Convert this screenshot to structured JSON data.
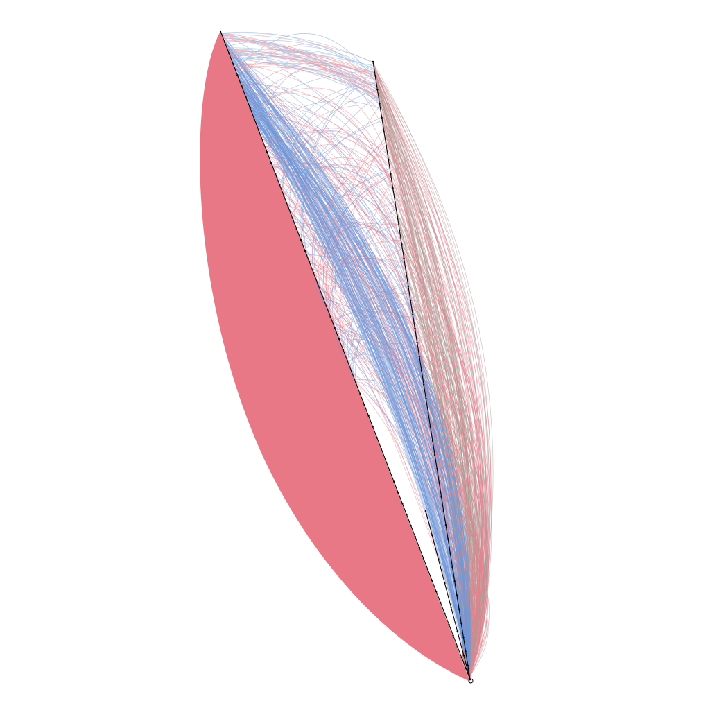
{
  "chart_data": {
    "type": "hive_plot",
    "title": "",
    "axes": [
      {
        "id": "a",
        "label": "",
        "nodes": 60
      },
      {
        "id": "b",
        "label": "",
        "nodes": 45
      },
      {
        "id": "c",
        "label": "",
        "nodes": 8
      }
    ],
    "edge_groups": [
      {
        "name": "",
        "from": "a",
        "to": "c",
        "color": "#e87886",
        "style": "dense-fill"
      },
      {
        "name": "",
        "from": "b",
        "to": "c",
        "color": "#a89c94",
        "style": "arcs"
      },
      {
        "name": "",
        "from": "b",
        "to": "c",
        "color": "#e8808e",
        "style": "arcs"
      },
      {
        "name": "",
        "from": "a",
        "to": "b",
        "color": "#7098d8",
        "style": "arcs"
      },
      {
        "name": "",
        "from": "a",
        "to": "b",
        "color": "#e8808e",
        "style": "arcs"
      }
    ],
    "colors": {
      "background": "#ffffff",
      "axis": "#000000",
      "pink": "#e87886",
      "blue": "#7098d8",
      "taupe": "#a89c94"
    },
    "legend": "none",
    "grid": false
  }
}
